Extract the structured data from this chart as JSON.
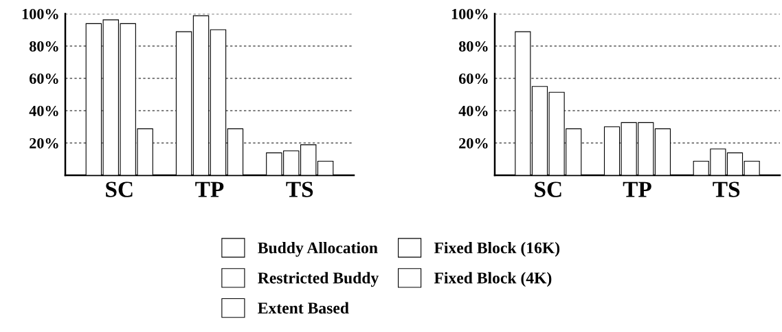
{
  "chart_data": [
    {
      "type": "bar",
      "categories": [
        "SC",
        "TP",
        "TS"
      ],
      "ylim": [
        0,
        100
      ],
      "yticks": [
        {
          "value": 20,
          "label": "20%"
        },
        {
          "value": 40,
          "label": "40%"
        },
        {
          "value": 60,
          "label": "60%"
        },
        {
          "value": 80,
          "label": "80%"
        },
        {
          "value": 100,
          "label": "100%"
        }
      ],
      "grid": "y",
      "series": [
        {
          "color": "#ffffff",
          "values": [
            93.9,
            88.9,
            13.9
          ]
        },
        {
          "color": "#ffffff",
          "values": [
            96.2,
            98.8,
            15.1
          ]
        },
        {
          "color": "#ffffff",
          "values": [
            93.9,
            90.1,
            18.9
          ]
        },
        {
          "color": "#ffffff",
          "values": [
            28.8,
            28.8,
            8.7
          ]
        }
      ]
    },
    {
      "type": "bar",
      "categories": [
        "SC",
        "TP",
        "TS"
      ],
      "ylim": [
        0,
        100
      ],
      "yticks": [
        {
          "value": 20,
          "label": "20%"
        },
        {
          "value": 40,
          "label": "40%"
        },
        {
          "value": 60,
          "label": "60%"
        },
        {
          "value": 80,
          "label": "80%"
        },
        {
          "value": 100,
          "label": "100%"
        }
      ],
      "grid": "y",
      "series": [
        {
          "color": "#ffffff",
          "values": [
            88.9,
            30.0,
            8.7
          ]
        },
        {
          "color": "#ffffff",
          "values": [
            55.0,
            32.6,
            16.3
          ]
        },
        {
          "color": "#ffffff",
          "values": [
            51.4,
            32.6,
            13.9
          ]
        },
        {
          "color": "#ffffff",
          "values": [
            28.8,
            28.8,
            8.7
          ]
        }
      ]
    },
    {
      "type": "other",
      "legend": "bottom",
      "series": [
        {
          "name": "Buddy Allocation",
          "color": "#ffffff"
        },
        {
          "name": "Restricted Buddy",
          "color": "#ffffff"
        },
        {
          "name": "Extent Based",
          "color": "#ffffff"
        },
        {
          "name": "Fixed Block (16K)",
          "color": "#ffffff"
        },
        {
          "name": "Fixed Block (4K)",
          "color": "#ffffff"
        }
      ]
    }
  ]
}
